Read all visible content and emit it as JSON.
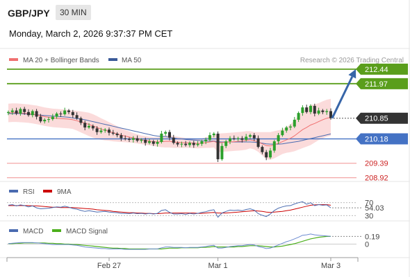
{
  "header": {
    "symbol": "GBP/JPY",
    "timeframe": "30 MIN",
    "datetime": "Monday, March 2, 2026 9:37:37 PM CET"
  },
  "legend": {
    "ma20": "MA 20 + Bollinger Bands",
    "ma50": "MA 50",
    "source": "Research © 2026 Trading Central"
  },
  "colors": {
    "up": "#2ca02c",
    "down": "#333333",
    "ma20": "#f07070",
    "ma50": "#4a6bb0",
    "green": "#5a9e1c",
    "blue": "#4472c4",
    "red": "#e06666",
    "arrow": "#3765a8"
  },
  "chart_data": [
    {
      "type": "candlestick",
      "ylim": [
        208.8,
        212.55
      ],
      "levels": [
        {
          "value": 212.44,
          "label": "212.44",
          "kind": "resistance"
        },
        {
          "value": 211.97,
          "label": "211.97",
          "kind": "resistance"
        },
        {
          "value": 210.85,
          "label": "210.85",
          "kind": "current"
        },
        {
          "value": 210.18,
          "label": "210.18",
          "kind": "pivot"
        },
        {
          "value": 209.39,
          "label": "209.39",
          "kind": "support"
        },
        {
          "value": 208.92,
          "label": "208.92",
          "kind": "support"
        }
      ],
      "x_ticks": [
        {
          "i": 25,
          "label": "Feb 27"
        },
        {
          "i": 52,
          "label": "Mar 1"
        },
        {
          "i": 80,
          "label": "Mar 3"
        }
      ],
      "close": [
        211.05,
        211.1,
        211.0,
        211.15,
        211.05,
        210.95,
        211.08,
        210.9,
        210.75,
        210.8,
        210.82,
        210.9,
        211.0,
        210.98,
        211.1,
        211.05,
        210.95,
        210.85,
        210.7,
        210.55,
        210.6,
        210.52,
        210.4,
        210.45,
        210.48,
        210.38,
        210.35,
        210.3,
        210.2,
        210.18,
        210.15,
        210.2,
        210.12,
        210.15,
        210.05,
        210.1,
        210.02,
        210.08,
        210.35,
        210.4,
        210.22,
        210.05,
        210.0,
        210.02,
        209.98,
        210.05,
        209.98,
        210.02,
        210.1,
        210.15,
        210.3,
        210.35,
        209.52,
        209.95,
        210.1,
        210.2,
        210.18,
        210.2,
        210.15,
        210.25,
        210.3,
        210.2,
        209.92,
        209.75,
        209.58,
        209.8,
        210.1,
        210.3,
        210.45,
        210.55,
        210.58,
        210.8,
        211.02,
        211.2,
        211.05,
        211.25,
        211.0,
        211.1,
        211.05,
        211.08,
        210.85
      ],
      "ma20": [
        211.02,
        211.03,
        211.03,
        211.02,
        211.01,
        211.0,
        210.98,
        210.96,
        210.93,
        210.9,
        210.88,
        210.86,
        210.85,
        210.84,
        210.83,
        210.82,
        210.8,
        210.77,
        210.73,
        210.69,
        210.65,
        210.6,
        210.55,
        210.5,
        210.46,
        210.42,
        210.38,
        210.34,
        210.3,
        210.27,
        210.24,
        210.21,
        210.18,
        210.15,
        210.13,
        210.11,
        210.09,
        210.08,
        210.09,
        210.1,
        210.1,
        210.08,
        210.07,
        210.06,
        210.05,
        210.05,
        210.04,
        210.03,
        210.04,
        210.06,
        210.08,
        210.1,
        210.05,
        210.06,
        210.07,
        210.08,
        210.09,
        210.1,
        210.11,
        210.13,
        210.15,
        210.12,
        210.08,
        210.02,
        209.96,
        209.95,
        209.99,
        210.04,
        210.09,
        210.15,
        210.2,
        210.28,
        210.38,
        210.48,
        210.55,
        210.63,
        210.68,
        210.74,
        210.8,
        210.85,
        210.88
      ],
      "ma50": [
        211.0,
        211.0,
        211.0,
        211.0,
        210.99,
        210.98,
        210.97,
        210.96,
        210.95,
        210.94,
        210.93,
        210.92,
        210.91,
        210.9,
        210.89,
        210.88,
        210.86,
        210.84,
        210.82,
        210.8,
        210.77,
        210.74,
        210.71,
        210.68,
        210.65,
        210.62,
        210.59,
        210.56,
        210.53,
        210.5,
        210.47,
        210.44,
        210.41,
        210.38,
        210.35,
        210.32,
        210.29,
        210.27,
        210.26,
        210.25,
        210.23,
        210.21,
        210.19,
        210.18,
        210.16,
        210.15,
        210.14,
        210.13,
        210.12,
        210.11,
        210.11,
        210.11,
        210.09,
        210.08,
        210.08,
        210.08,
        210.08,
        210.08,
        210.08,
        210.08,
        210.08,
        210.07,
        210.06,
        210.04,
        210.02,
        210.01,
        210.01,
        210.01,
        210.02,
        210.04,
        210.06,
        210.08,
        210.1,
        210.13,
        210.16,
        210.19,
        210.22,
        210.25,
        210.28,
        210.31,
        210.34
      ],
      "bb_width": [
        0.3,
        0.3,
        0.3,
        0.3,
        0.3,
        0.3,
        0.3,
        0.3,
        0.3,
        0.3,
        0.3,
        0.3,
        0.3,
        0.3,
        0.3,
        0.3,
        0.3,
        0.32,
        0.34,
        0.36,
        0.38,
        0.38,
        0.37,
        0.35,
        0.33,
        0.3,
        0.28,
        0.25,
        0.22,
        0.2,
        0.18,
        0.16,
        0.15,
        0.14,
        0.14,
        0.14,
        0.14,
        0.15,
        0.18,
        0.2,
        0.2,
        0.19,
        0.18,
        0.17,
        0.16,
        0.16,
        0.16,
        0.16,
        0.16,
        0.17,
        0.19,
        0.2,
        0.3,
        0.3,
        0.3,
        0.3,
        0.3,
        0.3,
        0.3,
        0.3,
        0.28,
        0.28,
        0.32,
        0.38,
        0.44,
        0.45,
        0.44,
        0.42,
        0.4,
        0.42,
        0.45,
        0.5,
        0.55,
        0.6,
        0.62,
        0.65,
        0.62,
        0.6,
        0.6,
        0.6,
        0.6
      ]
    },
    {
      "type": "line",
      "legend": [
        "RSI",
        "9MA"
      ],
      "value_label": "54.03",
      "y_ticks": [
        "70",
        "30"
      ],
      "ylim": [
        20,
        80
      ],
      "rsi": [
        62,
        64,
        60,
        63,
        61,
        57,
        60,
        54,
        51,
        52,
        53,
        55,
        57,
        56,
        59,
        56,
        52,
        50,
        46,
        43,
        45,
        43,
        41,
        42,
        43,
        41,
        40,
        39,
        37,
        37,
        36,
        38,
        36,
        37,
        35,
        37,
        35,
        37,
        46,
        48,
        40,
        35,
        35,
        36,
        34,
        37,
        35,
        37,
        40,
        42,
        46,
        48,
        25,
        38,
        43,
        47,
        46,
        47,
        45,
        49,
        51,
        47,
        36,
        31,
        27,
        35,
        46,
        53,
        57,
        60,
        61,
        66,
        70,
        73,
        65,
        70,
        61,
        64,
        62,
        63,
        54.03
      ],
      "ma9": [
        61,
        61,
        61,
        61,
        61,
        61,
        60,
        60,
        59,
        58,
        57,
        56,
        56,
        55,
        55,
        55,
        55,
        54,
        53,
        52,
        51,
        50,
        48,
        47,
        46,
        45,
        43,
        42,
        41,
        40,
        39,
        39,
        38,
        38,
        37,
        37,
        36,
        36,
        37,
        38,
        38,
        38,
        38,
        38,
        38,
        38,
        38,
        37,
        37,
        38,
        39,
        40,
        38,
        38,
        38,
        39,
        40,
        41,
        42,
        43,
        44,
        45,
        44,
        43,
        41,
        40,
        41,
        42,
        43,
        45,
        47,
        50,
        53,
        56,
        59,
        62,
        63,
        64,
        64,
        64,
        62
      ]
    },
    {
      "type": "line",
      "legend": [
        "MACD",
        "MACD Signal"
      ],
      "value_label": "0.19",
      "y_ticks": [
        "0"
      ],
      "ylim": [
        -0.3,
        0.3
      ],
      "macd": [
        0.01,
        0.02,
        0.03,
        0.04,
        0.04,
        0.04,
        0.04,
        0.03,
        0.02,
        0.01,
        0.0,
        -0.01,
        -0.01,
        -0.01,
        -0.01,
        -0.01,
        -0.02,
        -0.03,
        -0.05,
        -0.07,
        -0.08,
        -0.09,
        -0.1,
        -0.11,
        -0.11,
        -0.12,
        -0.12,
        -0.12,
        -0.12,
        -0.13,
        -0.13,
        -0.13,
        -0.13,
        -0.13,
        -0.13,
        -0.12,
        -0.12,
        -0.12,
        -0.09,
        -0.07,
        -0.07,
        -0.08,
        -0.08,
        -0.08,
        -0.09,
        -0.08,
        -0.08,
        -0.08,
        -0.07,
        -0.06,
        -0.04,
        -0.03,
        -0.1,
        -0.1,
        -0.08,
        -0.06,
        -0.05,
        -0.04,
        -0.04,
        -0.02,
        -0.01,
        -0.02,
        -0.06,
        -0.08,
        -0.11,
        -0.1,
        -0.06,
        -0.02,
        0.02,
        0.06,
        0.09,
        0.13,
        0.17,
        0.22,
        0.23,
        0.25,
        0.23,
        0.22,
        0.21,
        0.2,
        0.19
      ],
      "signal": [
        0.01,
        0.01,
        0.02,
        0.02,
        0.03,
        0.03,
        0.03,
        0.03,
        0.03,
        0.03,
        0.02,
        0.02,
        0.01,
        0.01,
        0.0,
        0.0,
        -0.01,
        -0.01,
        -0.02,
        -0.03,
        -0.04,
        -0.05,
        -0.06,
        -0.07,
        -0.08,
        -0.09,
        -0.1,
        -0.1,
        -0.11,
        -0.11,
        -0.12,
        -0.12,
        -0.12,
        -0.12,
        -0.12,
        -0.12,
        -0.12,
        -0.12,
        -0.12,
        -0.11,
        -0.1,
        -0.1,
        -0.1,
        -0.09,
        -0.09,
        -0.09,
        -0.09,
        -0.09,
        -0.08,
        -0.08,
        -0.07,
        -0.06,
        -0.07,
        -0.07,
        -0.07,
        -0.07,
        -0.07,
        -0.06,
        -0.06,
        -0.05,
        -0.04,
        -0.04,
        -0.04,
        -0.05,
        -0.06,
        -0.07,
        -0.07,
        -0.06,
        -0.05,
        -0.03,
        -0.01,
        0.01,
        0.04,
        0.07,
        0.1,
        0.13,
        0.15,
        0.17,
        0.18,
        0.19,
        0.19
      ]
    }
  ]
}
